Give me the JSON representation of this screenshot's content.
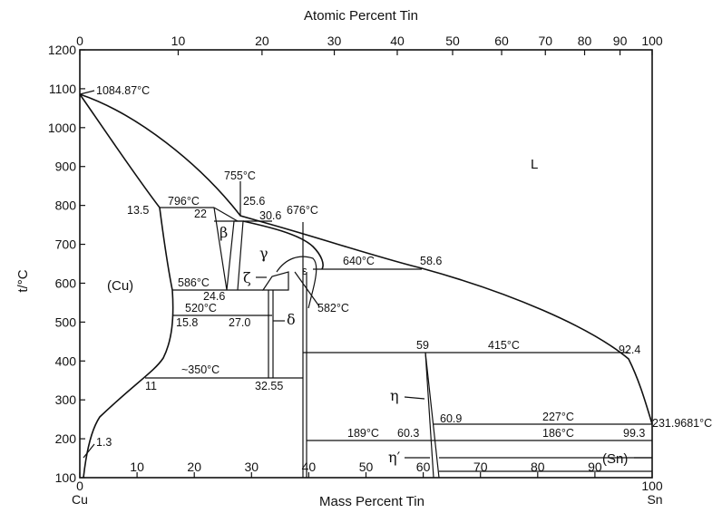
{
  "chart_data": {
    "type": "phase-diagram",
    "top_axis": {
      "title": "Atomic Percent Tin",
      "ticks": [
        "0",
        "10",
        "20",
        "30",
        "40",
        "50",
        "60",
        "70",
        "80",
        "90",
        "100"
      ]
    },
    "bottom_axis": {
      "title": "Mass Percent Tin",
      "ticks": [
        "0",
        "10",
        "20",
        "30",
        "40",
        "50",
        "60",
        "70",
        "80",
        "90",
        "100"
      ],
      "left_end": "Cu",
      "right_end": "Sn",
      "xlim": [
        0,
        100
      ]
    },
    "left_axis": {
      "title": "t/°C",
      "ticks": [
        "1200",
        "1100",
        "1000",
        "900",
        "800",
        "700",
        "600",
        "500",
        "400",
        "300",
        "200",
        "100"
      ],
      "ylim": [
        100,
        1200
      ]
    },
    "phases": {
      "liquid": "L",
      "cu": "(Cu)",
      "sn": "(Sn)",
      "beta": "β",
      "gamma": "γ",
      "zeta": "ζ",
      "epsilon": "ε",
      "delta": "δ",
      "eta": "η",
      "eta_prime": "η′"
    },
    "annotations": {
      "cu_melting": "1084.87°C",
      "sn_melting": "231.9681°C",
      "t755": "755°C",
      "t796": "796°C",
      "t676": "676°C",
      "t640": "640°C",
      "t586": "586°C",
      "t520": "520°C",
      "t582": "582°C",
      "t350": "~350°C",
      "t415": "415°C",
      "t227": "227°C",
      "t189": "189°C",
      "t186": "186°C",
      "c13_5": "13.5",
      "c22": "22",
      "c25_6": "25.6",
      "c30_6": "30.6",
      "c58_6": "58.6",
      "c24_6": "24.6",
      "c15_8": "15.8",
      "c27_0": "27.0",
      "c11": "11",
      "c32_55": "32.55",
      "c59": "59",
      "c92_4": "92.4",
      "c60_9": "60.9",
      "c60_3": "60.3",
      "c99_3": "99.3",
      "c1_3": "1.3"
    }
  }
}
